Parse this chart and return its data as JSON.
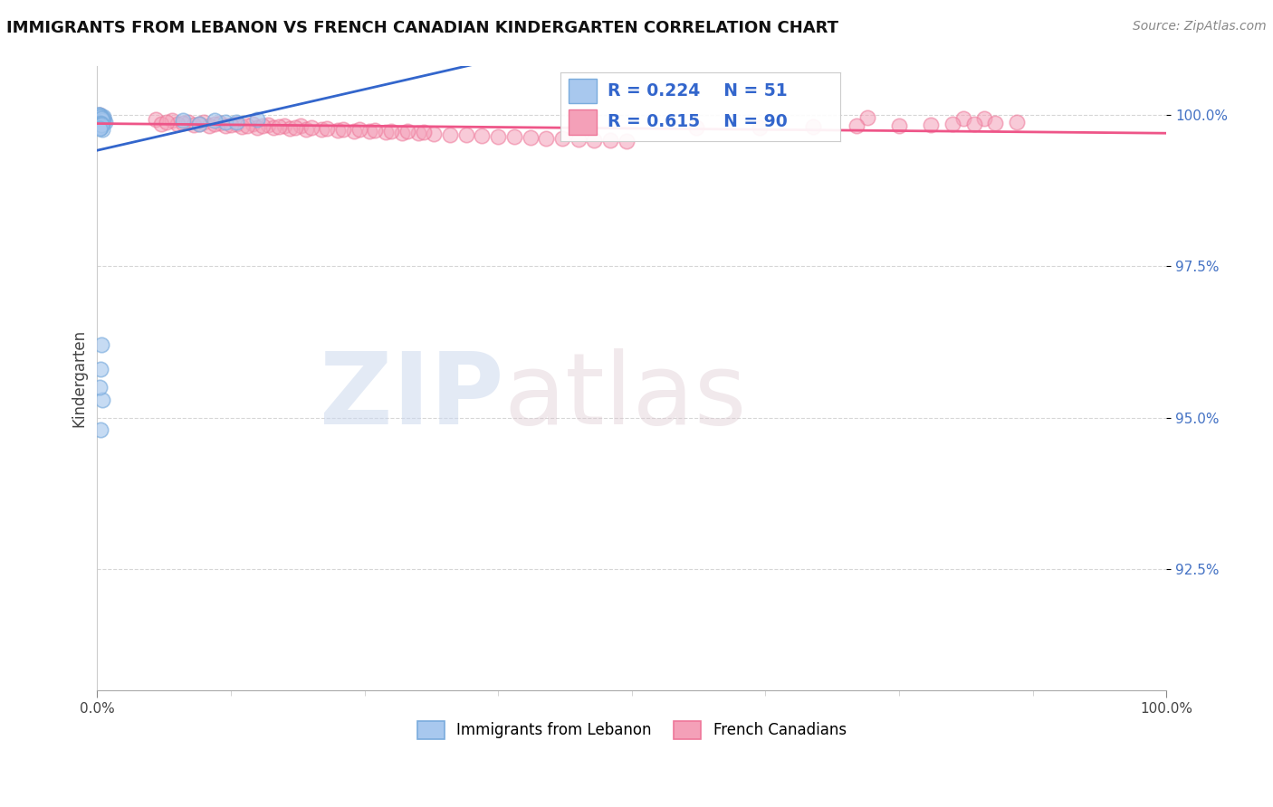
{
  "title": "IMMIGRANTS FROM LEBANON VS FRENCH CANADIAN KINDERGARTEN CORRELATION CHART",
  "source": "Source: ZipAtlas.com",
  "ylabel": "Kindergarten",
  "ytick_labels": [
    "92.5%",
    "95.0%",
    "97.5%",
    "100.0%"
  ],
  "ytick_values": [
    0.925,
    0.95,
    0.975,
    1.0
  ],
  "xlim": [
    0.0,
    1.0
  ],
  "ylim": [
    0.905,
    1.008
  ],
  "legend_blue_label": "Immigrants from Lebanon",
  "legend_pink_label": "French Canadians",
  "R_blue": 0.224,
  "N_blue": 51,
  "R_pink": 0.615,
  "N_pink": 90,
  "blue_color": "#a8c8ee",
  "pink_color": "#f4a0b8",
  "blue_line_color": "#3366cc",
  "pink_line_color": "#ee5588",
  "blue_edge_color": "#7aacdd",
  "pink_edge_color": "#ee7799",
  "blue_x": [
    0.003,
    0.004,
    0.002,
    0.005,
    0.001,
    0.006,
    0.003,
    0.004,
    0.002,
    0.007,
    0.003,
    0.002,
    0.004,
    0.001,
    0.005,
    0.003,
    0.006,
    0.002,
    0.004,
    0.003,
    0.002,
    0.005,
    0.003,
    0.001,
    0.004,
    0.006,
    0.003,
    0.002,
    0.005,
    0.004,
    0.003,
    0.002,
    0.001,
    0.004,
    0.003,
    0.002,
    0.005,
    0.003,
    0.004,
    0.002,
    0.08,
    0.15,
    0.12,
    0.095,
    0.11,
    0.13,
    0.005,
    0.003,
    0.004,
    0.002,
    0.003
  ],
  "blue_y": [
    0.9995,
    0.9992,
    0.9998,
    0.999,
    0.9997,
    0.9993,
    0.9996,
    0.9991,
    0.9999,
    0.9988,
    0.9994,
    0.9997,
    0.9992,
    0.9999,
    0.9995,
    0.9989,
    0.9996,
    0.9993,
    0.9991,
    0.9998,
    0.9997,
    0.9994,
    0.999,
    0.9999,
    0.9992,
    0.9988,
    0.9995,
    0.9997,
    0.9991,
    0.9993,
    0.9986,
    0.9984,
    0.998,
    0.9985,
    0.9978,
    0.9982,
    0.9976,
    0.9979,
    0.9983,
    0.9977,
    0.999,
    0.9992,
    0.9988,
    0.9985,
    0.9991,
    0.9987,
    0.953,
    0.948,
    0.962,
    0.955,
    0.958
  ],
  "pink_x": [
    0.002,
    0.004,
    0.003,
    0.005,
    0.002,
    0.006,
    0.003,
    0.004,
    0.002,
    0.005,
    0.003,
    0.001,
    0.004,
    0.002,
    0.005,
    0.003,
    0.006,
    0.002,
    0.004,
    0.003,
    0.055,
    0.07,
    0.085,
    0.1,
    0.115,
    0.13,
    0.145,
    0.16,
    0.175,
    0.19,
    0.06,
    0.075,
    0.09,
    0.105,
    0.12,
    0.135,
    0.15,
    0.165,
    0.18,
    0.195,
    0.21,
    0.225,
    0.24,
    0.255,
    0.27,
    0.285,
    0.3,
    0.315,
    0.33,
    0.345,
    0.36,
    0.375,
    0.39,
    0.405,
    0.42,
    0.435,
    0.45,
    0.465,
    0.48,
    0.495,
    0.065,
    0.08,
    0.095,
    0.11,
    0.125,
    0.14,
    0.155,
    0.17,
    0.185,
    0.2,
    0.215,
    0.23,
    0.245,
    0.26,
    0.275,
    0.29,
    0.305,
    0.72,
    0.81,
    0.83,
    0.56,
    0.62,
    0.67,
    0.71,
    0.75,
    0.78,
    0.8,
    0.82,
    0.84,
    0.86
  ],
  "pink_y": [
    0.9996,
    0.9993,
    0.9998,
    0.999,
    0.9997,
    0.9994,
    0.9992,
    0.9995,
    0.9999,
    0.9991,
    0.9988,
    0.9997,
    0.9993,
    0.9996,
    0.9989,
    0.9994,
    0.9991,
    0.9998,
    0.9992,
    0.9995,
    0.9992,
    0.999,
    0.9988,
    0.9987,
    0.9986,
    0.9985,
    0.9984,
    0.9983,
    0.9982,
    0.9981,
    0.9985,
    0.9984,
    0.9983,
    0.9982,
    0.9981,
    0.998,
    0.9979,
    0.9978,
    0.9977,
    0.9976,
    0.9975,
    0.9974,
    0.9973,
    0.9972,
    0.9971,
    0.997,
    0.9969,
    0.9968,
    0.9967,
    0.9966,
    0.9965,
    0.9964,
    0.9963,
    0.9962,
    0.9961,
    0.996,
    0.9959,
    0.9958,
    0.9957,
    0.9956,
    0.9988,
    0.9986,
    0.9985,
    0.9984,
    0.9983,
    0.9982,
    0.9981,
    0.998,
    0.9979,
    0.9978,
    0.9977,
    0.9976,
    0.9975,
    0.9974,
    0.9973,
    0.9972,
    0.9971,
    0.9995,
    0.9994,
    0.9993,
    0.9978,
    0.9979,
    0.998,
    0.9981,
    0.9982,
    0.9983,
    0.9984,
    0.9985,
    0.9986,
    0.9987
  ]
}
